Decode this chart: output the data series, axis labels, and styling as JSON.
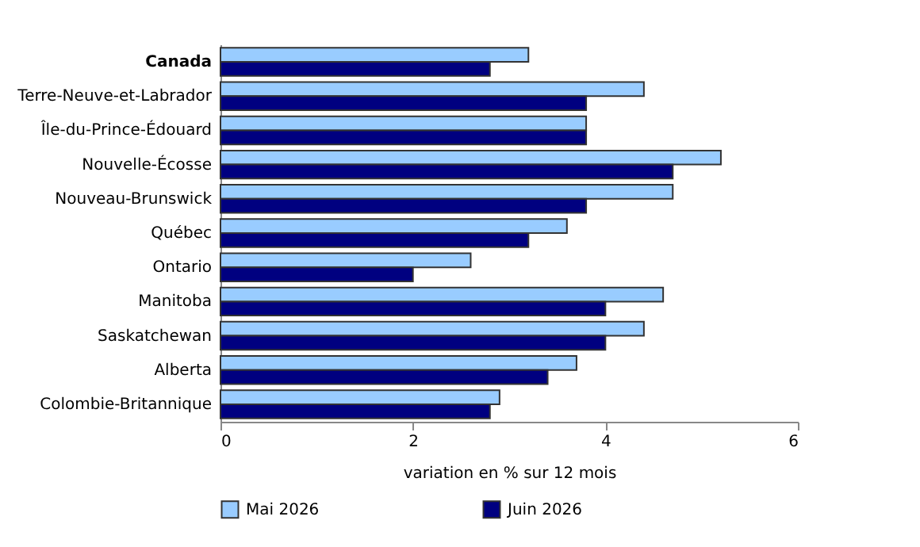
{
  "chart_data": {
    "type": "bar",
    "orientation": "horizontal",
    "xlabel": "variation en % sur 12 mois",
    "categories": [
      "Canada",
      "Terre-Neuve-et-Labrador",
      "Île-du-Prince-Édouard",
      "Nouvelle-Écosse",
      "Nouveau-Brunswick",
      "Québec",
      "Ontario",
      "Manitoba",
      "Saskatchewan",
      "Alberta",
      "Colombie-Britannique"
    ],
    "series": [
      {
        "name": "Mai 2026",
        "color": "#99ccff",
        "values": [
          3.2,
          4.4,
          3.8,
          5.2,
          4.7,
          3.6,
          2.6,
          4.6,
          4.4,
          3.7,
          2.9
        ]
      },
      {
        "name": "Juin 2026",
        "color": "#000080",
        "values": [
          2.8,
          3.8,
          3.8,
          4.7,
          3.8,
          3.2,
          2.0,
          4.0,
          4.0,
          3.4,
          2.8
        ]
      }
    ],
    "xlim": [
      0,
      6
    ],
    "xticks": [
      0,
      2,
      4,
      6
    ],
    "grid": false,
    "legend": "bottom"
  }
}
